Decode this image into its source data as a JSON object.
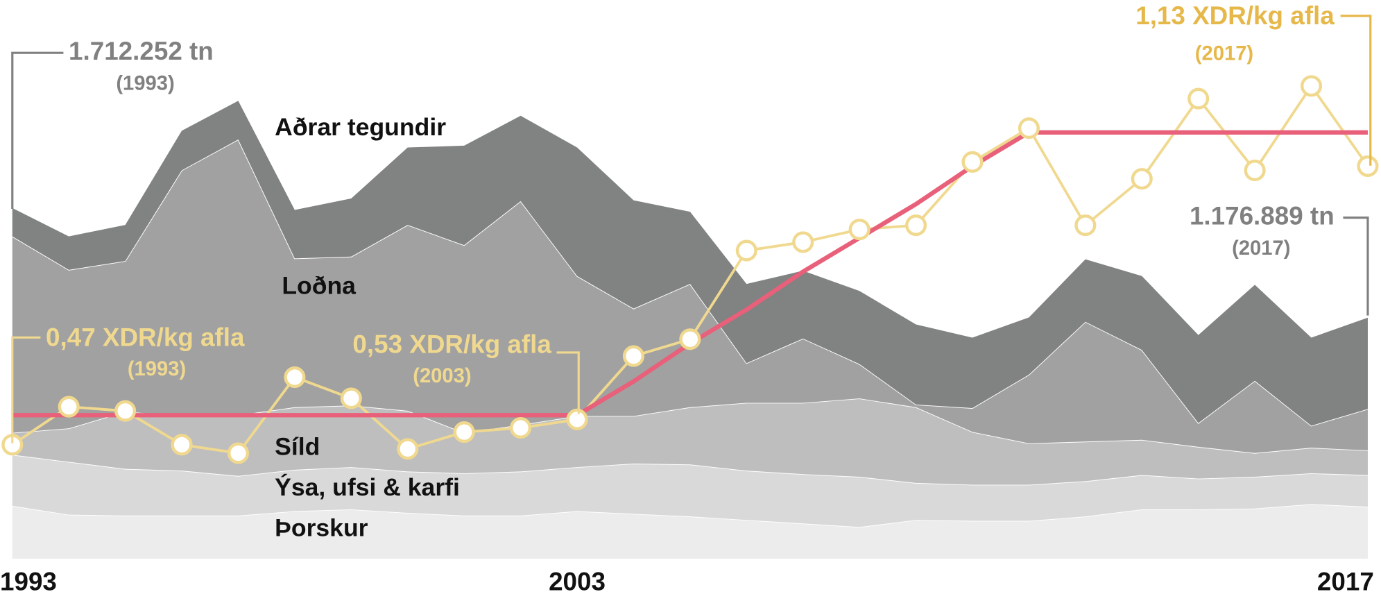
{
  "chart_data": {
    "type": "area",
    "stacked": true,
    "categories": [
      1993,
      null,
      null,
      null,
      null,
      null,
      null,
      null,
      null,
      null,
      2003,
      null,
      null,
      null,
      null,
      null,
      null,
      null,
      null,
      null,
      null,
      null,
      null,
      null,
      2017
    ],
    "series": [
      {
        "name": "Þorskur",
        "color": "#ececed",
        "values": [
          258000,
          215000,
          210700,
          210700,
          210700,
          232200,
          240800,
          223600,
          210700,
          210700,
          232200,
          219300,
          206400,
          189200,
          172000,
          154800,
          189200,
          184900,
          184900,
          206400,
          240800,
          240800,
          245100,
          266600,
          253700
        ]
      },
      {
        "name": "Ýsa, ufsi & karfi",
        "color": "#d9d9da",
        "values": [
          249400,
          258000,
          227900,
          219300,
          193500,
          202100,
          206400,
          202100,
          206400,
          215000,
          215000,
          245100,
          253700,
          240800,
          240800,
          245100,
          180600,
          176300,
          176300,
          172000,
          167700,
          150500,
          154800,
          150500,
          154800
        ]
      },
      {
        "name": "Síld",
        "color": "#bebebe",
        "values": [
          107500,
          163400,
          279500,
          266600,
          296700,
          305300,
          301000,
          296700,
          197800,
          227900,
          249400,
          232200,
          279500,
          331100,
          348300,
          382700,
          369800,
          258000,
          202100,
          193500,
          172000,
          154800,
          116100,
          124700,
          120400
        ]
      },
      {
        "name": "Loðna",
        "color": "#a1a1a1",
        "values": [
          958900,
          774000,
          735300,
          1199700,
          1345900,
          726700,
          726700,
          907300,
          915900,
          1092200,
          683700,
          524600,
          602000,
          193500,
          313900,
          167700,
          12900,
          116100,
          335400,
          584800,
          438600,
          116100,
          352600,
          107500,
          202100
        ]
      },
      {
        "name": "Aðrar tegundir",
        "color": "#818282",
        "values": [
          138452,
          163400,
          176300,
          193500,
          189200,
          236500,
          283800,
          378400,
          485900,
          417100,
          627800,
          528900,
          352600,
          387000,
          331100,
          356900,
          391300,
          344000,
          279500,
          305300,
          361200,
          430000,
          468700,
          430000,
          445889
        ]
      }
    ],
    "lines": [
      {
        "axis": "y2",
        "color": "#f0d98f",
        "markers": true,
        "values": [
          0.47,
          0.56,
          0.55,
          0.47,
          0.45,
          0.63,
          0.58,
          0.46,
          0.5,
          0.51,
          0.53,
          0.68,
          0.72,
          0.93,
          0.95,
          0.98,
          0.99,
          1.14,
          1.22,
          0.99,
          1.1,
          1.29,
          1.12,
          1.32,
          1.13
        ]
      },
      {
        "axis": "y2",
        "color": "#e8607a",
        "markers": false,
        "values": [
          0.54,
          0.54,
          0.54,
          0.54,
          0.54,
          0.54,
          0.54,
          0.54,
          0.54,
          0.54,
          0.54,
          0.62,
          0.71,
          0.79,
          0.88,
          0.96,
          1.04,
          1.13,
          1.21,
          1.21,
          1.21,
          1.21,
          1.21,
          1.21,
          1.21
        ]
      }
    ],
    "ylim": [
      0,
      2500000
    ],
    "y2lim": [
      0.2,
      1.413
    ],
    "annotations": [
      {
        "text": "1.712.252 tn",
        "sub": "(1993)",
        "color": "#808080"
      },
      {
        "text": "1.176.889 tn",
        "sub": "(2017)",
        "color": "#808080"
      },
      {
        "text": "0,47 XDR/kg afla",
        "sub": "(1993)",
        "color": "#f0d98f"
      },
      {
        "text": "0,53 XDR/kg afla",
        "sub": "(2003)",
        "color": "#f0d98f"
      },
      {
        "text": "1,13 XDR/kg afla",
        "sub": "(2017)",
        "color": "#e6b84a"
      }
    ]
  }
}
